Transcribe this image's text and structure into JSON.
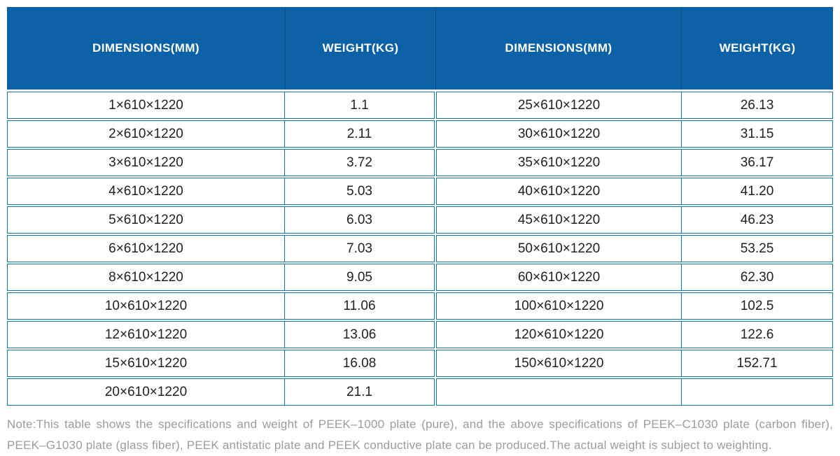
{
  "colors": {
    "header_bg": "#0c61a7",
    "header_divider": "#094e85",
    "cell_border": "#0878bd",
    "body_text": "#212121",
    "note_text": "#9c9c9c"
  },
  "table": {
    "headers": [
      "DIMENSIONS(MM)",
      "WEIGHT(KG)",
      "DIMENSIONS(MM)",
      "WEIGHT(KG)"
    ],
    "left_rows": [
      {
        "dimensions": "1×610×1220",
        "weight": "1.1"
      },
      {
        "dimensions": "2×610×1220",
        "weight": "2.11"
      },
      {
        "dimensions": "3×610×1220",
        "weight": "3.72"
      },
      {
        "dimensions": "4×610×1220",
        "weight": "5.03"
      },
      {
        "dimensions": "5×610×1220",
        "weight": "6.03"
      },
      {
        "dimensions": "6×610×1220",
        "weight": "7.03"
      },
      {
        "dimensions": "8×610×1220",
        "weight": "9.05"
      },
      {
        "dimensions": "10×610×1220",
        "weight": "11.06"
      },
      {
        "dimensions": "12×610×1220",
        "weight": "13.06"
      },
      {
        "dimensions": "15×610×1220",
        "weight": "16.08"
      },
      {
        "dimensions": "20×610×1220",
        "weight": "21.1"
      }
    ],
    "right_rows": [
      {
        "dimensions": "25×610×1220",
        "weight": "26.13"
      },
      {
        "dimensions": "30×610×1220",
        "weight": "31.15"
      },
      {
        "dimensions": "35×610×1220",
        "weight": "36.17"
      },
      {
        "dimensions": "40×610×1220",
        "weight": "41.20"
      },
      {
        "dimensions": "45×610×1220",
        "weight": "46.23"
      },
      {
        "dimensions": "50×610×1220",
        "weight": "53.25"
      },
      {
        "dimensions": "60×610×1220",
        "weight": "62.30"
      },
      {
        "dimensions": "100×610×1220",
        "weight": "102.5"
      },
      {
        "dimensions": "120×610×1220",
        "weight": "122.6"
      },
      {
        "dimensions": "150×610×1220",
        "weight": "152.71"
      },
      {
        "dimensions": "",
        "weight": ""
      }
    ]
  },
  "note": {
    "line1": "Note:This table shows the specifications and weight of PEEK–1000 plate (pure), and the above specifications of PEEK–C1030 plate (carbon fiber),",
    "line2": "PEEK–G1030 plate (glass fiber), PEEK antistatic plate and PEEK conductive plate can be produced.The actual weight is subject to weighting."
  }
}
